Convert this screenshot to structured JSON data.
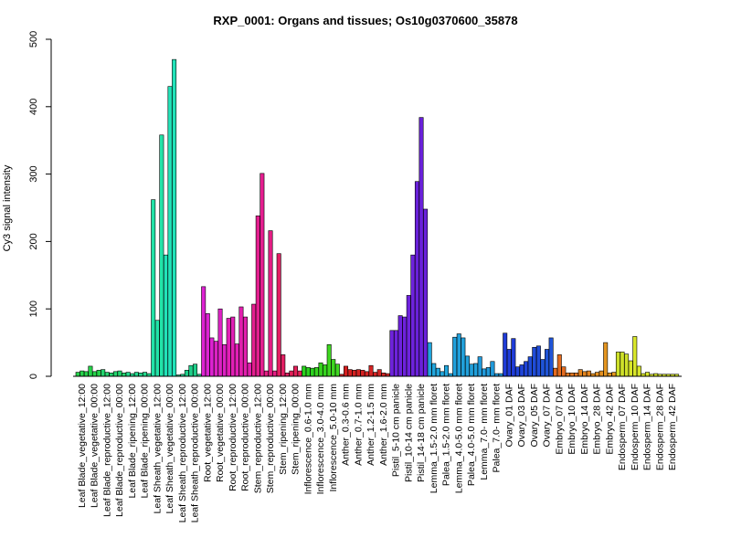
{
  "chart_data": {
    "type": "bar",
    "title": "RXP_0001: Organs and tissues; Os10g0370600_35878",
    "ylabel": "Cy3 signal intensity",
    "xlabel": "",
    "ylim": [
      0,
      500
    ],
    "yticks": [
      0,
      100,
      200,
      300,
      400,
      500
    ],
    "grid": false,
    "legend": "none",
    "categories": [
      "Leaf Blade_vegetative_12:00",
      "Leaf Blade_vegetative_00:00",
      "Leaf Blade_reproductive_12:00",
      "Leaf Blade_reproductive_00:00",
      "Leaf Blade_ripening_12:00",
      "Leaf Blade_ripening_00:00",
      "Leaf Sheath_vegetative_12:00",
      "Leaf Sheath_vegetative_00:00",
      "Leaf Sheath_reproductive_12:00",
      "Leaf Sheath_reproductive_00:00",
      "Root_vegetative_12:00",
      "Root_vegetative_00:00",
      "Root_reproductive_12:00",
      "Root_reproductive_00:00",
      "Stem_reproductive_12:00",
      "Stem_reproductive_00:00",
      "Stem_ripening_12:00",
      "Stem_ripening_00:00",
      "Inflorescence_0.6-1.0 mm",
      "Inflorescence_3.0-4.0 mm",
      "Inflorescence_5.0-10 mm",
      "Anther_0.3-0.6 mm",
      "Anther_0.7-1.0 mm",
      "Anther_1.2-1.5 mm",
      "Anther_1.6-2.0 mm",
      "Pistil_5-10 cm panicle",
      "Pistil_10-14 cm panicle",
      "Pistil_14-18 cm panicle",
      "Lemma_1.5-2.0 mm floret",
      "Palea_1.5-2.0 mm floret",
      "Lemma_4.0-5.0 mm floret",
      "Palea_4.0-5.0 mm floret",
      "Lemma_7.0- mm floret",
      "Palea_7.0- mm floret",
      "Ovary_01 DAF",
      "Ovary_03 DAF",
      "Ovary_05 DAF",
      "Ovary_07 DAF",
      "Embryo_07 DAF",
      "Embryo_10 DAF",
      "Embryo_14 DAF",
      "Embryo_28 DAF",
      "Embryo_42 DAF",
      "Endosperm_07 DAF",
      "Endosperm_10 DAF",
      "Endosperm_14 DAF",
      "Endosperm_28 DAF",
      "Endosperm_42 DAF"
    ],
    "colors": [
      "#26d34a",
      "#26d34a",
      "#23d66e",
      "#23d66e",
      "#22d98c",
      "#22d98c",
      "#22e3a8",
      "#22e3b9",
      "#1fcf8a",
      "#1fcf8a",
      "#dd22d2",
      "#dd22c4",
      "#e21fb6",
      "#e21fae",
      "#e41e8f",
      "#e41e84",
      "#e31f63",
      "#e31f58",
      "#2ad21d",
      "#36d41f",
      "#3ed720",
      "#d51f1f",
      "#d42222",
      "#d52424",
      "#d52727",
      "#6e22dd",
      "#6e22dd",
      "#6a21db",
      "#21a6dd",
      "#21a6dd",
      "#21a0db",
      "#21a0db",
      "#219adb",
      "#219adb",
      "#1f3cd8",
      "#1f44d8",
      "#1f4cd8",
      "#1f54d8",
      "#e46b1f",
      "#e4781f",
      "#e4851f",
      "#e48f1f",
      "#e4951f",
      "#cfe12a",
      "#d8e62a",
      "#d8e62a",
      "#d8e62a",
      "#d8e62a"
    ],
    "groups": [
      [
        6,
        8,
        7
      ],
      [
        15,
        7,
        9
      ],
      [
        10,
        6,
        5
      ],
      [
        7,
        8,
        5
      ],
      [
        6,
        4,
        6
      ],
      [
        5,
        6,
        4
      ],
      [
        262,
        83,
        358
      ],
      [
        180,
        430,
        470
      ],
      [
        2,
        3,
        9
      ],
      [
        16,
        18,
        3
      ],
      [
        133,
        93,
        57
      ],
      [
        52,
        100,
        47
      ],
      [
        86,
        88,
        48
      ],
      [
        103,
        88,
        20
      ],
      [
        107,
        238,
        301
      ],
      [
        8,
        216,
        8
      ],
      [
        182,
        32,
        5
      ],
      [
        8,
        15,
        8
      ],
      [
        15,
        13,
        12
      ],
      [
        13,
        20,
        17
      ],
      [
        47,
        25,
        18
      ],
      [
        3,
        15,
        10
      ],
      [
        9,
        10,
        9
      ],
      [
        7,
        16,
        6
      ],
      [
        10,
        5,
        4
      ],
      [
        68,
        68,
        90
      ],
      [
        88,
        120,
        180
      ],
      [
        289,
        384,
        248
      ],
      [
        50,
        19,
        12
      ],
      [
        7,
        16,
        4
      ],
      [
        58,
        63,
        57
      ],
      [
        30,
        18,
        19
      ],
      [
        29,
        11,
        13
      ],
      [
        22,
        4,
        4
      ],
      [
        64,
        40,
        56
      ],
      [
        14,
        17,
        22
      ],
      [
        29,
        43,
        45
      ],
      [
        25,
        40,
        57
      ],
      [
        12,
        32,
        14
      ],
      [
        5,
        5,
        5
      ],
      [
        10,
        7,
        8
      ],
      [
        4,
        6,
        8
      ],
      [
        50,
        5,
        6
      ],
      [
        36,
        36,
        33
      ],
      [
        23,
        59,
        15
      ],
      [
        4,
        6,
        3
      ],
      [
        4,
        3,
        3
      ],
      [
        3,
        3,
        3
      ]
    ]
  }
}
